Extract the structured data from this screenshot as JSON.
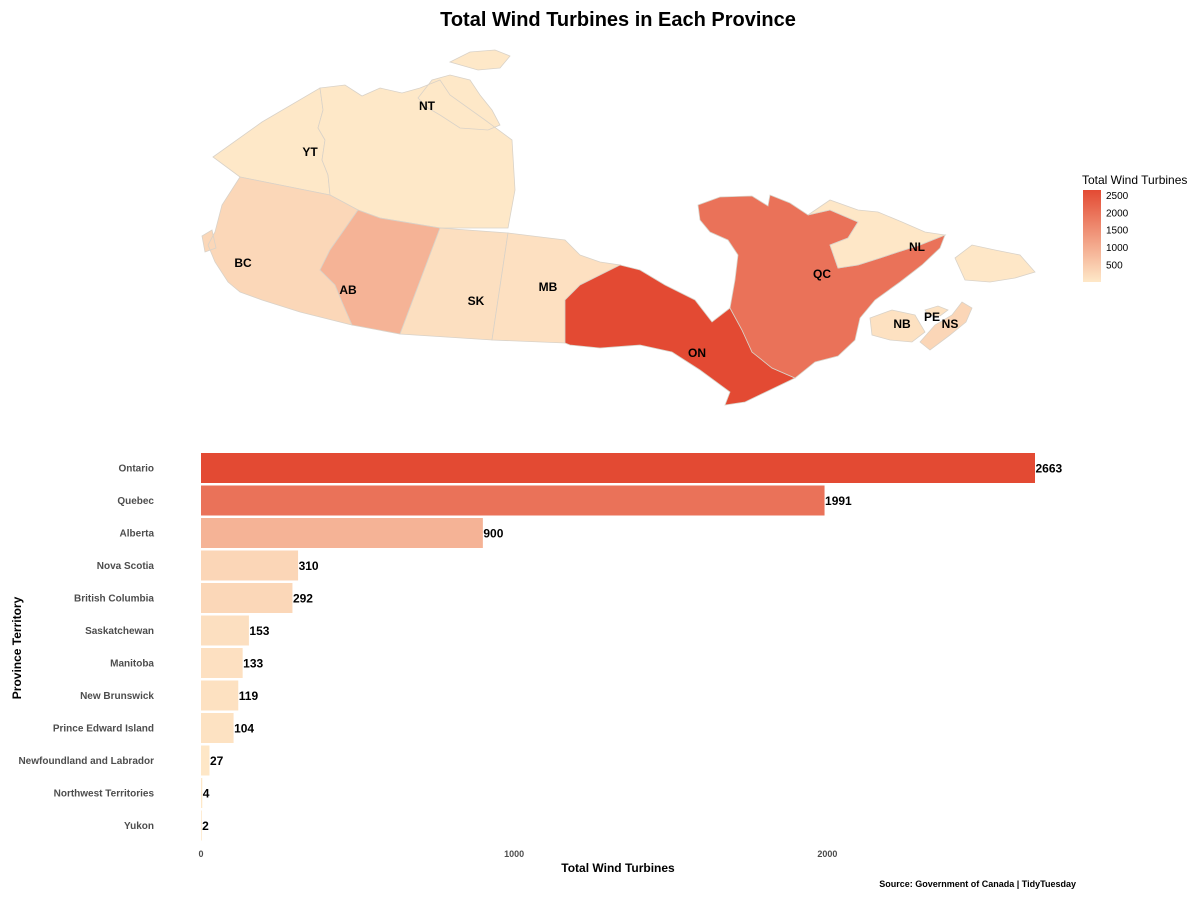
{
  "chart_data": [
    {
      "type": "map",
      "title": "Total Wind Turbines in Each Province",
      "legend": {
        "title": "Total Wind Turbines",
        "placement": "right",
        "ticks": [
          "2500",
          "2000",
          "1500",
          "1000",
          "500"
        ],
        "tick_values": [
          2500,
          2000,
          1500,
          1000,
          500
        ],
        "range": [
          2,
          2663
        ],
        "low_color": "#fee8c8",
        "high_color": "#e34a33"
      },
      "regions": [
        {
          "abbr": "YT",
          "name": "Yukon",
          "value": 2
        },
        {
          "abbr": "NT",
          "name": "Northwest Territories",
          "value": 4
        },
        {
          "abbr": "BC",
          "name": "British Columbia",
          "value": 292
        },
        {
          "abbr": "AB",
          "name": "Alberta",
          "value": 900
        },
        {
          "abbr": "SK",
          "name": "Saskatchewan",
          "value": 153
        },
        {
          "abbr": "MB",
          "name": "Manitoba",
          "value": 133
        },
        {
          "abbr": "ON",
          "name": "Ontario",
          "value": 2663
        },
        {
          "abbr": "QC",
          "name": "Quebec",
          "value": 1991
        },
        {
          "abbr": "NL",
          "name": "Newfoundland and Labrador",
          "value": 27
        },
        {
          "abbr": "NB",
          "name": "New Brunswick",
          "value": 119
        },
        {
          "abbr": "PE",
          "name": "Prince Edward Island",
          "value": 104
        },
        {
          "abbr": "NS",
          "name": "Nova Scotia",
          "value": 310
        }
      ]
    },
    {
      "type": "bar",
      "orientation": "horizontal",
      "categories": [
        "Ontario",
        "Quebec",
        "Alberta",
        "Nova Scotia",
        "British Columbia",
        "Saskatchewan",
        "Manitoba",
        "New Brunswick",
        "Prince Edward Island",
        "Newfoundland and Labrador",
        "Northwest Territories",
        "Yukon"
      ],
      "values": [
        2663,
        1991,
        900,
        310,
        292,
        153,
        133,
        119,
        104,
        27,
        4,
        2
      ],
      "value_labels": [
        "2663",
        "1991",
        "900",
        "310",
        "292",
        "153",
        "133",
        "119",
        "104",
        "27",
        "4",
        "2"
      ],
      "xlabel": "Total Wind Turbines",
      "ylabel": "Province Territory",
      "xlim": [
        0,
        2663
      ],
      "xticks": [
        0,
        1000,
        2000
      ],
      "xtick_labels": [
        "0",
        "1000",
        "2000"
      ],
      "grid": false
    }
  ],
  "caption": "Source:  Government of Canada | TidyTuesday"
}
